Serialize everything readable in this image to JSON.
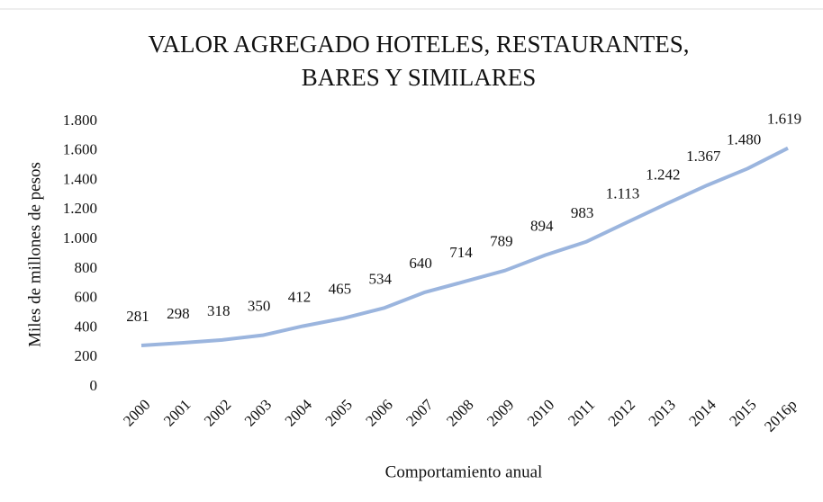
{
  "chart_data": {
    "type": "line",
    "title": [
      "VALOR AGREGADO  HOTELES, RESTAURANTES,",
      "BARES  Y SIMILARES"
    ],
    "y_label": "Miles de millones de pesos",
    "x_label": "Comportamiento  anual",
    "categories": [
      "2000",
      "2001",
      "2002",
      "2003",
      "2004",
      "2005",
      "2006",
      "2007",
      "2008",
      "2009",
      "2010",
      "2011",
      "2012",
      "2013",
      "2014",
      "2015",
      "2016p"
    ],
    "series": [
      {
        "name": "Valor agregado",
        "color": "#9bb5de",
        "values": [
          281,
          298,
          318,
          350,
          412,
          465,
          534,
          640,
          714,
          789,
          894,
          983,
          1113,
          1242,
          1367,
          1480,
          1619
        ],
        "value_labels": [
          "281",
          "298",
          "318",
          "350",
          "412",
          "465",
          "534",
          "640",
          "714",
          "789",
          "894",
          "983",
          "1.113",
          "1.242",
          "1.367",
          "1.480",
          "1.619"
        ]
      }
    ],
    "ylim": [
      0,
      1800
    ],
    "yticks": [
      0,
      200,
      400,
      600,
      800,
      {
        "value": 1000,
        "label": "1.000"
      },
      {
        "value": 1200,
        "label": "1.200"
      },
      {
        "value": 1400,
        "label": "1.400"
      },
      {
        "value": 1600,
        "label": "1.600"
      },
      {
        "value": 1800,
        "label": "1.800"
      }
    ],
    "grid": false
  }
}
